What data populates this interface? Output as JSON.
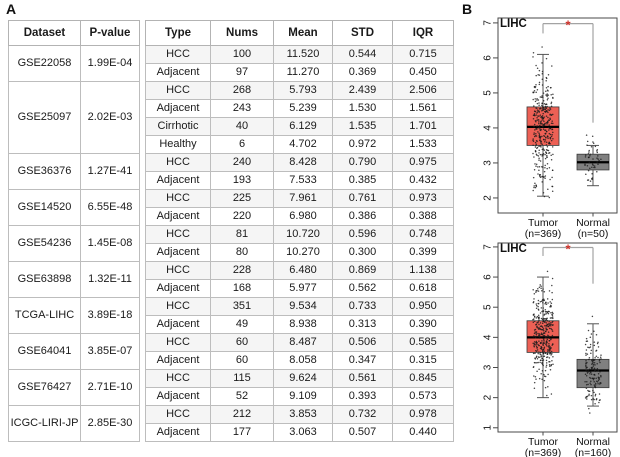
{
  "figure": {
    "panel_a_label": "A",
    "panel_b_label": "B"
  },
  "table": {
    "headers": [
      "Dataset",
      "P-value",
      "Type",
      "Nums",
      "Mean",
      "STD",
      "IQR"
    ],
    "groups": [
      {
        "dataset": "GSE22058",
        "pvalue": "1.99E-04",
        "rows": [
          [
            "HCC",
            "100",
            "11.520",
            "0.544",
            "0.715"
          ],
          [
            "Adjacent",
            "97",
            "11.270",
            "0.369",
            "0.450"
          ]
        ]
      },
      {
        "dataset": "GSE25097",
        "pvalue": "2.02E-03",
        "rows": [
          [
            "HCC",
            "268",
            "5.793",
            "2.439",
            "2.506"
          ],
          [
            "Adjacent",
            "243",
            "5.239",
            "1.530",
            "1.561"
          ],
          [
            "Cirrhotic",
            "40",
            "6.129",
            "1.535",
            "1.701"
          ],
          [
            "Healthy",
            "6",
            "4.702",
            "0.972",
            "1.533"
          ]
        ]
      },
      {
        "dataset": "GSE36376",
        "pvalue": "1.27E-41",
        "rows": [
          [
            "HCC",
            "240",
            "8.428",
            "0.790",
            "0.975"
          ],
          [
            "Adjacent",
            "193",
            "7.533",
            "0.385",
            "0.432"
          ]
        ]
      },
      {
        "dataset": "GSE14520",
        "pvalue": "6.55E-48",
        "rows": [
          [
            "HCC",
            "225",
            "7.961",
            "0.761",
            "0.973"
          ],
          [
            "Adjacent",
            "220",
            "6.980",
            "0.386",
            "0.388"
          ]
        ]
      },
      {
        "dataset": "GSE54236",
        "pvalue": "1.45E-08",
        "rows": [
          [
            "HCC",
            "81",
            "10.720",
            "0.596",
            "0.748"
          ],
          [
            "Adjacent",
            "80",
            "10.270",
            "0.300",
            "0.399"
          ]
        ]
      },
      {
        "dataset": "GSE63898",
        "pvalue": "1.32E-11",
        "rows": [
          [
            "HCC",
            "228",
            "6.480",
            "0.869",
            "1.138"
          ],
          [
            "Adjacent",
            "168",
            "5.977",
            "0.562",
            "0.618"
          ]
        ]
      },
      {
        "dataset": "TCGA-LIHC",
        "pvalue": "3.89E-18",
        "rows": [
          [
            "HCC",
            "351",
            "9.534",
            "0.733",
            "0.950"
          ],
          [
            "Adjacent",
            "49",
            "8.938",
            "0.313",
            "0.390"
          ]
        ]
      },
      {
        "dataset": "GSE64041",
        "pvalue": "3.85E-07",
        "rows": [
          [
            "HCC",
            "60",
            "8.487",
            "0.506",
            "0.585"
          ],
          [
            "Adjacent",
            "60",
            "8.058",
            "0.347",
            "0.315"
          ]
        ]
      },
      {
        "dataset": "GSE76427",
        "pvalue": "2.71E-10",
        "rows": [
          [
            "HCC",
            "115",
            "9.624",
            "0.561",
            "0.845"
          ],
          [
            "Adjacent",
            "52",
            "9.109",
            "0.393",
            "0.573"
          ]
        ]
      },
      {
        "dataset": "ICGC-LIRI-JP",
        "pvalue": "2.85E-30",
        "rows": [
          [
            "HCC",
            "212",
            "3.853",
            "0.732",
            "0.978"
          ],
          [
            "Adjacent",
            "177",
            "3.063",
            "0.507",
            "0.440"
          ]
        ]
      }
    ]
  },
  "chart_data": [
    {
      "type": "boxplot",
      "title": "LIHC",
      "ylim": [
        1.57,
        7.14
      ],
      "yticks": [
        2,
        3,
        4,
        5,
        6,
        7
      ],
      "significance": {
        "symbol": "*",
        "y": 6.98,
        "left_drop_to": 6.7,
        "right_drop_to": 4.15
      },
      "colors": {
        "tumor": "#ed6055",
        "normal": "#808080",
        "sig": "#d0342c"
      },
      "groups": [
        {
          "label": "Tumor",
          "sublabel": "(n=369)",
          "color": "#ed6055",
          "q1": 3.5,
          "median": 4.03,
          "q3": 4.6,
          "whisker_low": 2.05,
          "whisker_high": 6.1,
          "points": {
            "n": 369,
            "sd": 0.82,
            "min": 2.0,
            "max": 6.55,
            "jitter": 10
          }
        },
        {
          "label": "Normal",
          "sublabel": "(n=50)",
          "color": "#808080",
          "q1": 2.8,
          "median": 3.02,
          "q3": 3.25,
          "whisker_low": 2.35,
          "whisker_high": 3.5,
          "points": {
            "n": 50,
            "sd": 0.4,
            "min": 2.25,
            "max": 3.95,
            "jitter": 8
          }
        }
      ]
    },
    {
      "type": "boxplot",
      "title": "LIHC",
      "ylim": [
        0.86,
        7.13
      ],
      "yticks": [
        1,
        2,
        3,
        4,
        5,
        6,
        7
      ],
      "significance": {
        "symbol": "*",
        "y": 6.98,
        "left_drop_to": 6.7,
        "right_drop_to": 5.78
      },
      "colors": {
        "tumor": "#ed6055",
        "normal": "#808080",
        "sig": "#d0342c"
      },
      "groups": [
        {
          "label": "Tumor",
          "sublabel": "(n=369)",
          "color": "#ed6055",
          "q1": 3.5,
          "median": 4.0,
          "q3": 4.55,
          "whisker_low": 2.0,
          "whisker_high": 6.0,
          "points": {
            "n": 369,
            "sd": 0.8,
            "min": 1.95,
            "max": 6.45,
            "jitter": 10
          }
        },
        {
          "label": "Normal",
          "sublabel": "(n=160)",
          "color": "#808080",
          "q1": 2.33,
          "median": 2.9,
          "q3": 3.27,
          "whisker_low": 1.72,
          "whisker_high": 4.45,
          "points": {
            "n": 160,
            "sd": 0.62,
            "min": 1.0,
            "max": 5.45,
            "jitter": 8
          }
        }
      ]
    }
  ]
}
